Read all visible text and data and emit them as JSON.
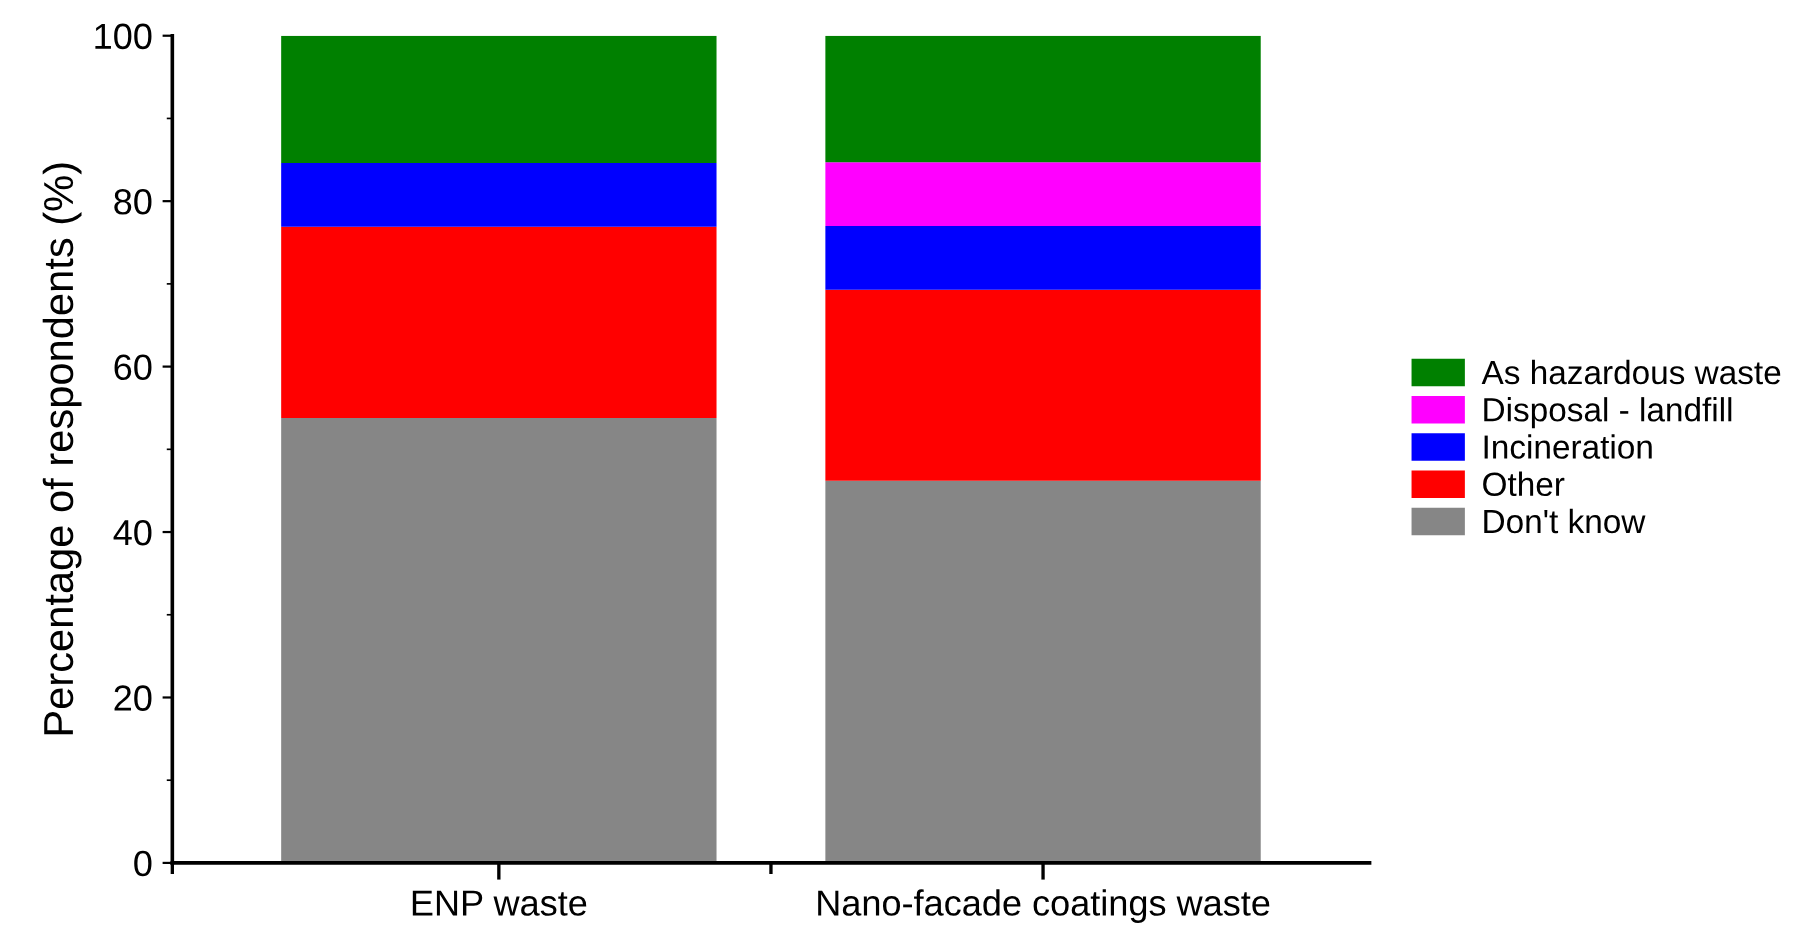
{
  "chart_data": {
    "type": "bar",
    "stacked": true,
    "ylabel": "Percentage of respondents (%)",
    "categories": [
      "ENP waste",
      "Nano-facade coatings waste"
    ],
    "series": [
      {
        "name": "Don't know",
        "color": "#868686",
        "values": [
          53.8,
          46.2
        ]
      },
      {
        "name": "Other",
        "color": "#ff0000",
        "values": [
          23.1,
          23.1
        ]
      },
      {
        "name": "Incineration",
        "color": "#0000ff",
        "values": [
          7.7,
          7.7
        ]
      },
      {
        "name": "Disposal - landfill",
        "color": "#ff00ff",
        "values": [
          0,
          7.7
        ]
      },
      {
        "name": "As hazardous waste",
        "color": "#008000",
        "values": [
          15.4,
          15.3
        ]
      }
    ],
    "ylim": [
      0,
      100
    ],
    "yticks": [
      0,
      20,
      40,
      60,
      80,
      100
    ],
    "grid": false,
    "legend": "right"
  }
}
